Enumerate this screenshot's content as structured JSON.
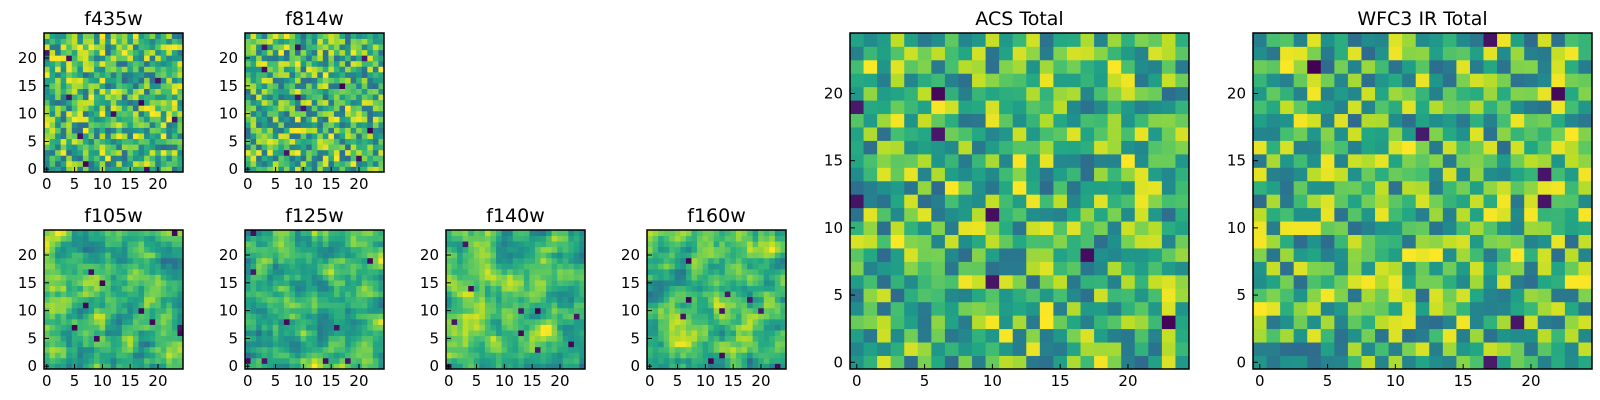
{
  "figure": {
    "colormap": "viridis",
    "colors": {
      "low": "#440154",
      "mid_low": "#31688e",
      "mid": "#35b779",
      "high": "#fde725",
      "axes_edge": "#000000",
      "background": "#ffffff"
    }
  },
  "chart_data": [
    {
      "id": "f435w",
      "type": "heatmap",
      "title": "f435w",
      "grid_size": [
        25,
        25
      ],
      "xlim": [
        -0.5,
        24.5
      ],
      "ylim": [
        -0.5,
        24.5
      ],
      "xticks": [
        0,
        5,
        10,
        15,
        20
      ],
      "yticks": [
        0,
        5,
        10,
        15,
        20
      ],
      "value_range": [
        0,
        1
      ],
      "values": [],
      "grid": false
    },
    {
      "id": "f814w",
      "type": "heatmap",
      "title": "f814w",
      "grid_size": [
        25,
        25
      ],
      "xlim": [
        -0.5,
        24.5
      ],
      "ylim": [
        -0.5,
        24.5
      ],
      "xticks": [
        0,
        5,
        10,
        15,
        20
      ],
      "yticks": [
        0,
        5,
        10,
        15,
        20
      ],
      "value_range": [
        0,
        1
      ],
      "values": [],
      "grid": false
    },
    {
      "id": "f105w",
      "type": "heatmap",
      "title": "f105w",
      "grid_size": [
        25,
        25
      ],
      "xlim": [
        -0.5,
        24.5
      ],
      "ylim": [
        -0.5,
        24.5
      ],
      "xticks": [
        0,
        5,
        10,
        15,
        20
      ],
      "yticks": [
        0,
        5,
        10,
        15,
        20
      ],
      "value_range": [
        0,
        1
      ],
      "values": [],
      "grid": false
    },
    {
      "id": "f125w",
      "type": "heatmap",
      "title": "f125w",
      "grid_size": [
        25,
        25
      ],
      "xlim": [
        -0.5,
        24.5
      ],
      "ylim": [
        -0.5,
        24.5
      ],
      "xticks": [
        0,
        5,
        10,
        15,
        20
      ],
      "yticks": [
        0,
        5,
        10,
        15,
        20
      ],
      "value_range": [
        0,
        1
      ],
      "values": [],
      "grid": false
    },
    {
      "id": "f140w",
      "type": "heatmap",
      "title": "f140w",
      "grid_size": [
        25,
        25
      ],
      "xlim": [
        -0.5,
        24.5
      ],
      "ylim": [
        -0.5,
        24.5
      ],
      "xticks": [
        0,
        5,
        10,
        15,
        20
      ],
      "yticks": [
        0,
        5,
        10,
        15,
        20
      ],
      "value_range": [
        0,
        1
      ],
      "values": [],
      "grid": false
    },
    {
      "id": "f160w",
      "type": "heatmap",
      "title": "f160w",
      "grid_size": [
        25,
        25
      ],
      "xlim": [
        -0.5,
        24.5
      ],
      "ylim": [
        -0.5,
        24.5
      ],
      "xticks": [
        0,
        5,
        10,
        15,
        20
      ],
      "yticks": [
        0,
        5,
        10,
        15,
        20
      ],
      "value_range": [
        0,
        1
      ],
      "values": [],
      "grid": false
    },
    {
      "id": "acs-total",
      "type": "heatmap",
      "title": "ACS Total",
      "grid_size": [
        25,
        25
      ],
      "xlim": [
        -0.5,
        24.5
      ],
      "ylim": [
        -0.5,
        24.5
      ],
      "xticks": [
        0,
        5,
        10,
        15,
        20
      ],
      "yticks": [
        0,
        5,
        10,
        15,
        20
      ],
      "value_range": [
        0,
        1
      ],
      "values": [],
      "grid": false
    },
    {
      "id": "wfc3-ir-total",
      "type": "heatmap",
      "title": "WFC3 IR Total",
      "grid_size": [
        25,
        25
      ],
      "xlim": [
        -0.5,
        24.5
      ],
      "ylim": [
        -0.5,
        24.5
      ],
      "xticks": [
        0,
        5,
        10,
        15,
        20
      ],
      "yticks": [
        0,
        5,
        10,
        15,
        20
      ],
      "value_range": [
        0,
        1
      ],
      "values": [],
      "grid": false
    }
  ]
}
